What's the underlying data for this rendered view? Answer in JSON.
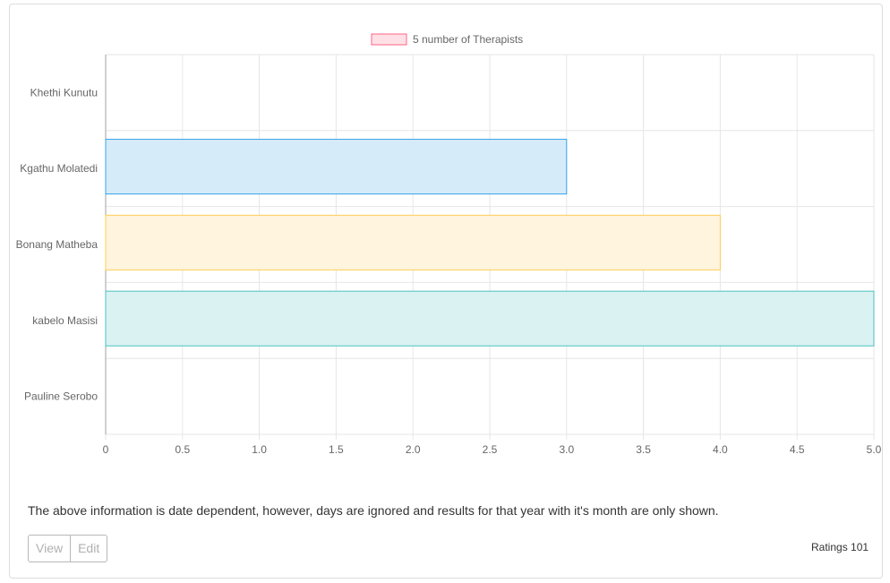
{
  "chart_data": {
    "type": "bar",
    "orientation": "horizontal",
    "categories": [
      "Khethi Kunutu",
      "Kgathu Molatedi",
      "Bonang Matheba",
      "kabelo Masisi",
      "Pauline Serobo"
    ],
    "values": [
      0,
      3,
      4,
      5,
      0
    ],
    "bar_fills": [
      "#ffe0e6",
      "#d6ebf9",
      "#fff4de",
      "#dbf2f2",
      "#ece4ff"
    ],
    "bar_strokes": [
      "#ff6384",
      "#36a2eb",
      "#ffcd56",
      "#4bc0c0",
      "#9966ff"
    ],
    "legend": {
      "label": "5 number of Therapists",
      "fill": "#ffe0e6",
      "stroke": "#ff6384",
      "position": "top"
    },
    "xlim": [
      0,
      5
    ],
    "x_ticks": [
      "0",
      "0.5",
      "1.0",
      "1.5",
      "2.0",
      "2.5",
      "3.0",
      "3.5",
      "4.0",
      "4.5",
      "5.0"
    ],
    "grid": true
  },
  "footer": {
    "note": "The above information is date dependent, however, days are ignored and results for that year with it's month are only shown.",
    "view_label": "View",
    "edit_label": "Edit",
    "ratings": "Ratings 101"
  }
}
